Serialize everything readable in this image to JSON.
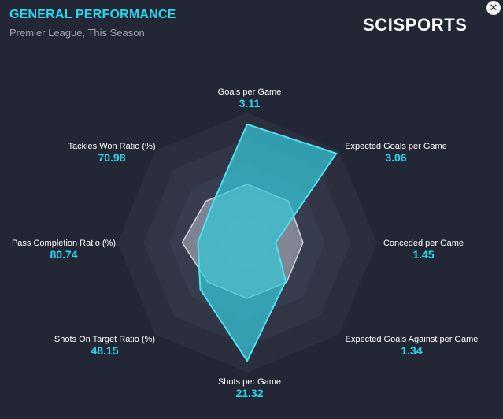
{
  "header": {
    "title": "GENERAL PERFORMANCE",
    "subtitle": "Premier League, This Season",
    "brand": "SCISPORTS",
    "close_icon": "close-icon"
  },
  "chart_data": {
    "type": "radar",
    "axes": [
      {
        "label": "Goals per Game",
        "value": "3.11",
        "team_score": 0.91,
        "avg_score": 0.45
      },
      {
        "label": "Expected Goals per Game",
        "value": "3.06",
        "team_score": 0.97,
        "avg_score": 0.45
      },
      {
        "label": "Conceded per Game",
        "value": "1.45",
        "team_score": 0.22,
        "avg_score": 0.43
      },
      {
        "label": "Expected Goals Against per Game",
        "value": "1.34",
        "team_score": 0.42,
        "avg_score": 0.43
      },
      {
        "label": "Shots per Game",
        "value": "21.32",
        "team_score": 0.91,
        "avg_score": 0.43
      },
      {
        "label": "Shots On Target Ratio (%)",
        "value": "48.15",
        "team_score": 0.51,
        "avg_score": 0.43
      },
      {
        "label": "Pass Completion Ratio (%)",
        "value": "80.74",
        "team_score": 0.38,
        "avg_score": 0.5
      },
      {
        "label": "Tackles Won Ratio (%)",
        "value": "70.98",
        "team_score": 0.39,
        "avg_score": 0.45
      }
    ],
    "rings": 5,
    "colors": {
      "team_fill": "#35c9d8",
      "team_stroke": "#4fe0ee",
      "avg_fill": "#b9bcc6",
      "avg_stroke": "#d0d3db",
      "value_text": "#2ad8ee",
      "label_text": "#ffffff",
      "background": "#232634"
    }
  }
}
